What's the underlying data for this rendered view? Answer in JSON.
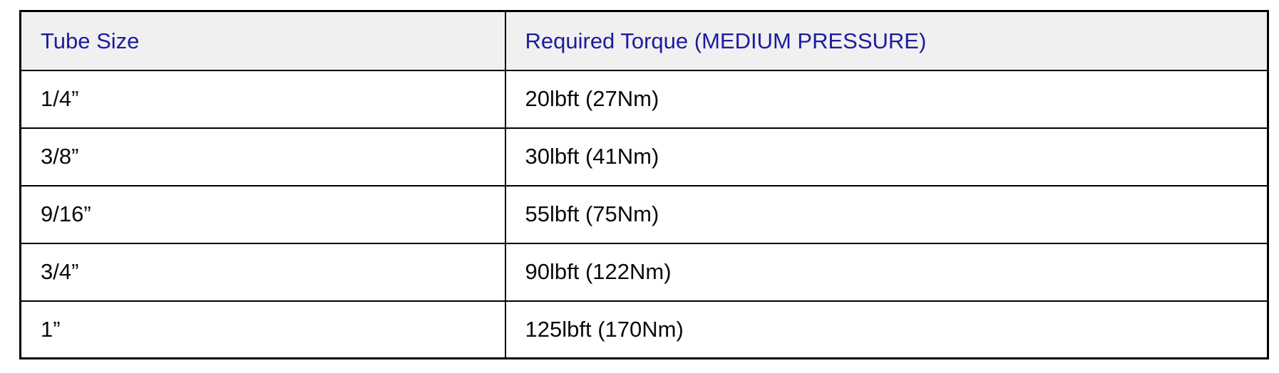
{
  "table": {
    "columns": [
      {
        "label": "Tube Size"
      },
      {
        "label": "Required Torque (MEDIUM PRESSURE)"
      }
    ],
    "rows": [
      {
        "tube_size": "1/4”",
        "torque": "20lbft (27Nm)"
      },
      {
        "tube_size": "3/8”",
        "torque": "30lbft (41Nm)"
      },
      {
        "tube_size": "9/16”",
        "torque": "55lbft (75Nm)"
      },
      {
        "tube_size": "3/4”",
        "torque": "90lbft (122Nm)"
      },
      {
        "tube_size": "1”",
        "torque": "125lbft (170Nm)"
      }
    ]
  },
  "colors": {
    "header_background": "#f0f0f0",
    "header_text": "#1c1c9e",
    "body_text": "#0a0a0a",
    "border": "#000000"
  }
}
